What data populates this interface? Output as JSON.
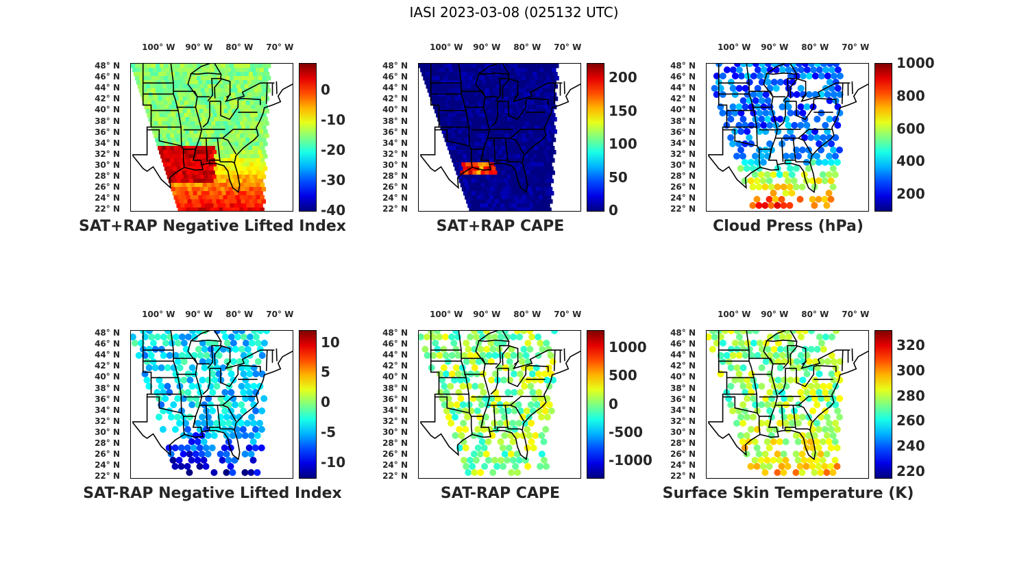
{
  "title": "IASI 2023-03-08 (025132 UTC)",
  "lon_labels": [
    "100° W",
    "90° W",
    "80° W",
    "70° W"
  ],
  "lat_labels": [
    "48° N",
    "46° N",
    "44° N",
    "42° N",
    "40° N",
    "38° N",
    "36° N",
    "34° N",
    "32° N",
    "30° N",
    "28° N",
    "26° N",
    "24° N",
    "22° N"
  ],
  "colormap": "jet",
  "colors": {
    "dark_red": "#800000",
    "red": "#ff0000",
    "yellow": "#ffff00",
    "cyan": "#00ffff",
    "blue": "#0000ff",
    "dark_blue": "#000080"
  },
  "chart_data": [
    {
      "type": "heatmap",
      "title": "SAT+RAP Negative Lifted Index",
      "colorbar_ticks": [
        "0",
        "-10",
        "-20",
        "-30",
        "-40"
      ],
      "clim": [
        -40,
        9
      ],
      "dominant_value": -15,
      "south_value": 5
    },
    {
      "type": "heatmap",
      "title": "SAT+RAP CAPE",
      "colorbar_ticks": [
        "200",
        "150",
        "100",
        "50",
        "0"
      ],
      "clim": [
        0,
        222
      ],
      "dominant_value": 0,
      "south_value": 0
    },
    {
      "type": "scatter",
      "title": "Cloud Press (hPa)",
      "colorbar_ticks": [
        "1000",
        "800",
        "600",
        "400",
        "200"
      ],
      "clim": [
        100,
        1000
      ],
      "dominant_value": 300,
      "south_value": 850
    },
    {
      "type": "scatter",
      "title": "SAT-RAP Negative Lifted Index",
      "colorbar_ticks": [
        "10",
        "5",
        "0",
        "-5",
        "-10"
      ],
      "clim": [
        -12.5,
        12
      ],
      "dominant_value": -4,
      "south_value": -11
    },
    {
      "type": "scatter",
      "title": "SAT-RAP CAPE",
      "colorbar_ticks": [
        "1000",
        "500",
        "0",
        "-500",
        "-1000"
      ],
      "clim": [
        -1300,
        1300
      ],
      "dominant_value": 50,
      "south_value": 50
    },
    {
      "type": "scatter",
      "title": "Surface Skin Temperature (K)",
      "colorbar_ticks": [
        "320",
        "300",
        "280",
        "260",
        "240",
        "220"
      ],
      "clim": [
        215,
        332
      ],
      "dominant_value": 275,
      "south_value": 295
    }
  ]
}
